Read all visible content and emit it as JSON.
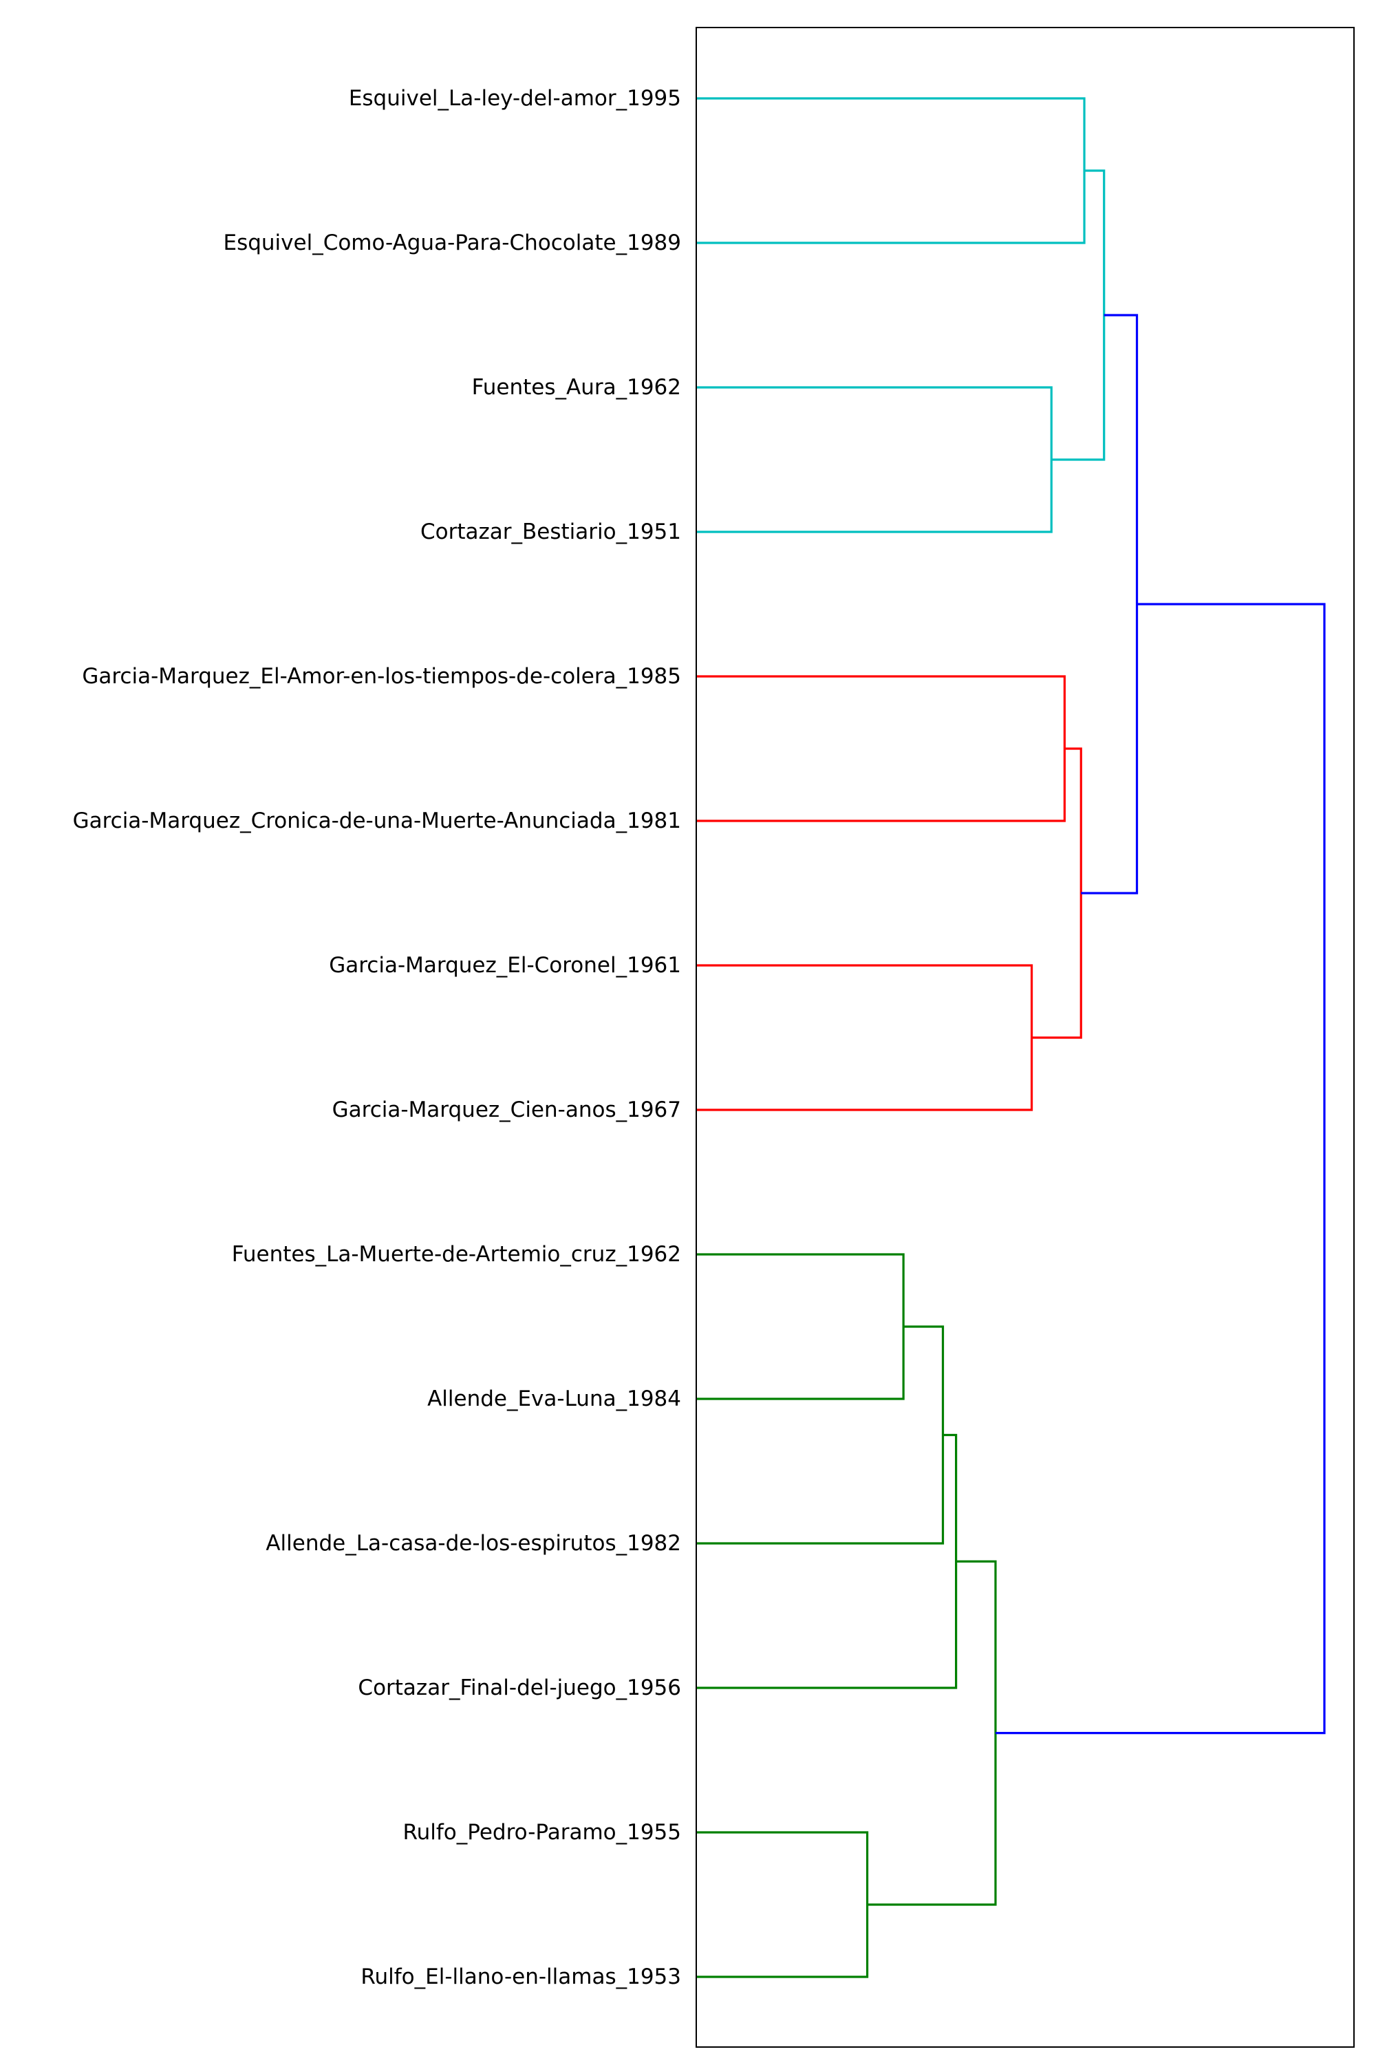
{
  "chart_data": {
    "type": "dendrogram",
    "orientation": "horizontal",
    "leaves": [
      "Esquivel_La-ley-del-amor_1995",
      "Esquivel_Como-Agua-Para-Chocolate_1989",
      "Fuentes_Aura_1962",
      "Cortazar_Bestiario_1951",
      "Garcia-Marquez_El-Amor-en-los-tiempos-de-colera_1985",
      "Garcia-Marquez_Cronica-de-una-Muerte-Anunciada_1981",
      "Garcia-Marquez_El-Coronel_1961",
      "Garcia-Marquez_Cien-anos_1967",
      "Fuentes_La-Muerte-de-Artemio_cruz_1962",
      "Allende_Eva-Luna_1984",
      "Allende_La-casa-de-los-espirutos_1982",
      "Cortazar_Final-del-juego_1956",
      "Rulfo_Pedro-Paramo_1955",
      "Rulfo_El-llano-en-llamas_1953"
    ],
    "merges": [
      {
        "left": 0,
        "right": 1,
        "height": 0.59,
        "color": "#00BFBF"
      },
      {
        "left": 2,
        "right": 3,
        "height": 0.54,
        "color": "#00BFBF"
      },
      {
        "left": 14,
        "right": 15,
        "height": 0.62,
        "color": "#00BFBF"
      },
      {
        "left": 4,
        "right": 5,
        "height": 0.56,
        "color": "#FF0000"
      },
      {
        "left": 6,
        "right": 7,
        "height": 0.51,
        "color": "#FF0000"
      },
      {
        "left": 17,
        "right": 18,
        "height": 0.585,
        "color": "#FF0000"
      },
      {
        "left": 16,
        "right": 19,
        "height": 0.67,
        "color": "#0000FF"
      },
      {
        "left": 8,
        "right": 9,
        "height": 0.315,
        "color": "#008000"
      },
      {
        "left": 21,
        "right": 10,
        "height": 0.375,
        "color": "#008000"
      },
      {
        "left": 22,
        "right": 11,
        "height": 0.395,
        "color": "#008000"
      },
      {
        "left": 12,
        "right": 13,
        "height": 0.26,
        "color": "#008000"
      },
      {
        "left": 23,
        "right": 24,
        "height": 0.455,
        "color": "#008000"
      },
      {
        "left": 20,
        "right": 25,
        "height": 0.955,
        "color": "#0000FF"
      }
    ],
    "xlim": [
      0,
      1
    ],
    "grid": false,
    "legend": "none",
    "title": "",
    "xlabel": "",
    "ylabel": ""
  },
  "colors": {
    "cyan_cluster": "#00BFBF",
    "red_cluster": "#FF0000",
    "green_cluster": "#008000",
    "link_above_threshold": "#0000FF",
    "axes_frame": "#000000",
    "label_text": "#000000"
  }
}
